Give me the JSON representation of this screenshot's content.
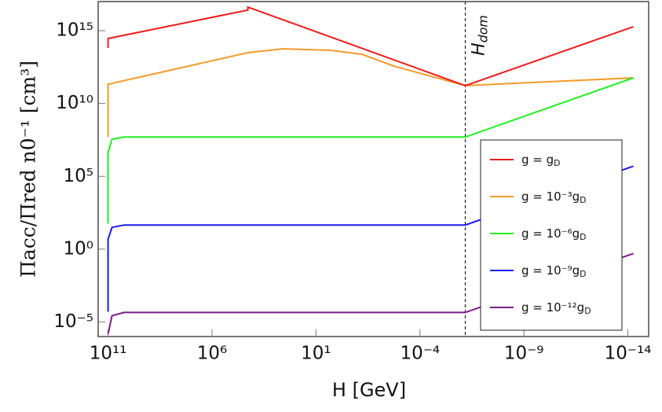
{
  "chart_data": {
    "type": "line",
    "log_x": true,
    "log_y": true,
    "x_reversed": true,
    "xlabel": "H [GeV]",
    "ylabel": "Πacc/Πred n0⁻¹ [cm³]",
    "xlim": [
      300000000000.0,
      1e-15
    ],
    "ylim": [
      1e-06,
      1e+17
    ],
    "xticks": [
      {
        "value": 100000000000.0,
        "label": "10¹¹"
      },
      {
        "value": 1000000.0,
        "label": "10⁶"
      },
      {
        "value": 10,
        "label": "10¹"
      },
      {
        "value": 0.0001,
        "label": "10⁻⁴"
      },
      {
        "value": 1e-09,
        "label": "10⁻⁹"
      },
      {
        "value": 1e-14,
        "label": "10⁻¹⁴"
      }
    ],
    "yticks": [
      {
        "value": 1000000000000000.0,
        "label": "10¹⁵"
      },
      {
        "value": 10000000000.0,
        "label": "10¹⁰"
      },
      {
        "value": 100000.0,
        "label": "10⁵"
      },
      {
        "value": 1,
        "label": "10⁰"
      },
      {
        "value": 1e-05,
        "label": "10⁻⁵"
      }
    ],
    "annotation": {
      "text": "Hdom",
      "x": 6.6e-07
    },
    "legend_position": "lower right",
    "series": [
      {
        "name": "g = 10⁻³gD",
        "color": "#f39a2a",
        "x": [
          100000000000.0,
          100000000000.0,
          19000.0,
          400.0,
          2,
          0.062,
          0.0018,
          6.6e-07,
          5.4e-15
        ],
        "values": [
          50000000.0,
          210000000000.0,
          31000000000000.0,
          57000000000000.0,
          45000000000000.0,
          24000000000000.0,
          3700000000000.0,
          170000000000.0,
          580000000000.0
        ]
      },
      {
        "name": "g = gD",
        "color": "#ee1c1c",
        "x": [
          100000000000.0,
          100000000000.0,
          19000.0,
          19000.0,
          6.6e-07,
          5.4e-15
        ],
        "values": [
          65000000000000.0,
          290000000000000.0,
          2.6e+16,
          4.2e+16,
          170000000000.0,
          1900000000000000.0
        ]
      },
      {
        "name": "g = 10⁻⁶gD",
        "color": "#22ee22",
        "x": [
          100000000000.0,
          100000000000.0,
          65000000000.0,
          17000000000.0,
          6.6e-07,
          5.4e-15
        ],
        "values": [
          58,
          4200000.0,
          35000000.0,
          50000000.0,
          50000000.0,
          580000000000.0
        ]
      },
      {
        "name": "g = 10⁻⁹gD",
        "color": "#1a1aee",
        "x": [
          100000000000.0,
          100000000000.0,
          65000000000.0,
          17000000000.0,
          6.6e-07,
          5.4e-15
        ],
        "values": [
          5e-05,
          4.8,
          31,
          45,
          45,
          500000.0
        ]
      },
      {
        "name": "g = 10⁻¹²gD",
        "color": "#7a1a8a",
        "x": [
          100000000000.0,
          65000000000.0,
          17000000000.0,
          6.6e-07,
          5.4e-15
        ],
        "values": [
          1.5e-06,
          2.7e-05,
          4.5e-05,
          4.5e-05,
          0.5
        ]
      }
    ]
  }
}
